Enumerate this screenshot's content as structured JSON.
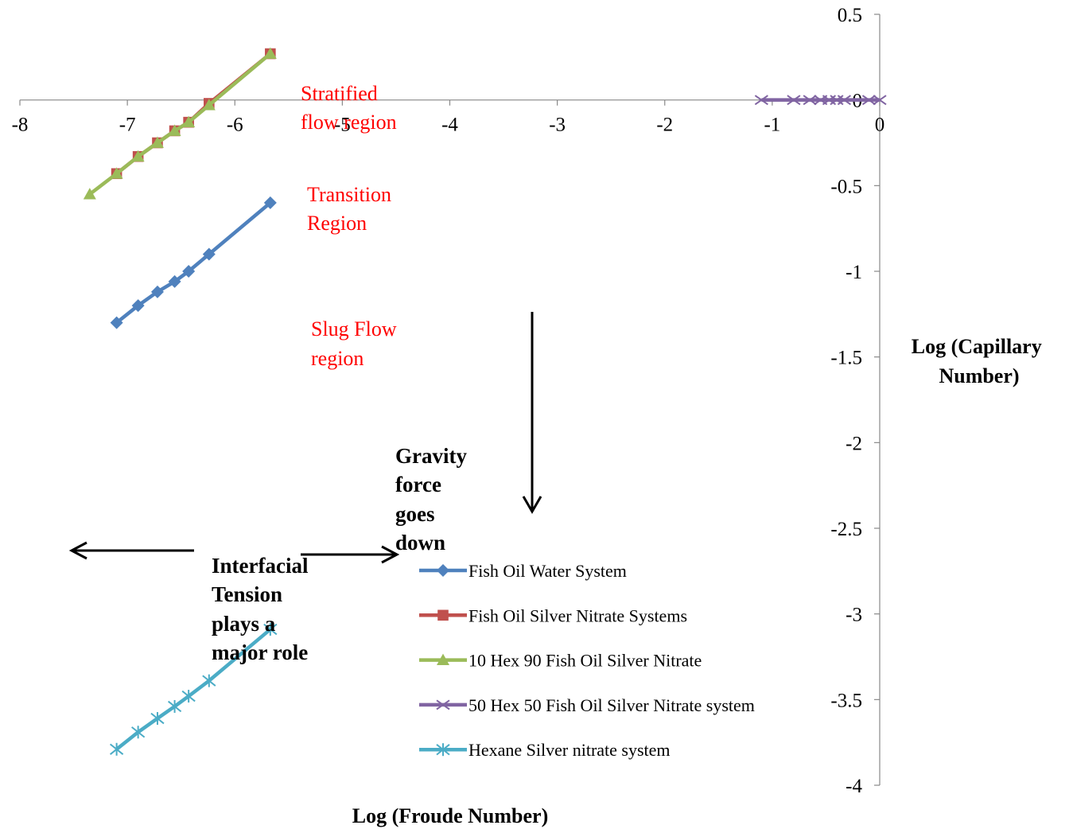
{
  "chart_data": {
    "type": "line",
    "xlabel": "Log (Froude Number)",
    "ylabel_lines": [
      "Log (Capillary",
      "Number)"
    ],
    "xlim": [
      -8,
      0
    ],
    "ylim": [
      -4,
      0.5
    ],
    "x_ticks": [
      -8,
      -7,
      -6,
      -5,
      -4,
      -3,
      -2,
      -1,
      0
    ],
    "y_ticks": [
      0.5,
      0,
      -0.5,
      -1,
      -1.5,
      -2,
      -2.5,
      -3,
      -3.5,
      -4
    ],
    "x_tick_labels": [
      "-8",
      "-7",
      "-6",
      "-5",
      "-4",
      "-3",
      "-2",
      "-1",
      "0"
    ],
    "y_tick_labels": [
      "0.5",
      "0",
      "-0.5",
      "-1",
      "-1.5",
      "-2",
      "-2.5",
      "-3",
      "-3.5",
      "-4"
    ],
    "grid": false,
    "legend_position": "bottom-right",
    "series": [
      {
        "name": "Fish Oil Water System",
        "color": "#4f81bd",
        "marker": "diamond",
        "x": [
          -7.1,
          -6.9,
          -6.72,
          -6.56,
          -6.43,
          -6.24,
          -5.67
        ],
        "y": [
          -1.3,
          -1.2,
          -1.12,
          -1.06,
          -1.0,
          -0.9,
          -0.6
        ]
      },
      {
        "name": "Fish Oil Silver Nitrate Systems",
        "color": "#c0504d",
        "marker": "square",
        "x": [
          -7.1,
          -6.9,
          -6.72,
          -6.56,
          -6.43,
          -6.24,
          -5.67
        ],
        "y": [
          -0.43,
          -0.33,
          -0.25,
          -0.18,
          -0.13,
          -0.02,
          0.27
        ]
      },
      {
        "name": "10 Hex 90 Fish Oil Silver Nitrate",
        "color": "#9bbb59",
        "marker": "triangle",
        "x": [
          -7.35,
          -7.1,
          -6.9,
          -6.72,
          -6.56,
          -6.43,
          -6.24,
          -5.67
        ],
        "y": [
          -0.55,
          -0.43,
          -0.33,
          -0.25,
          -0.18,
          -0.13,
          -0.03,
          0.27
        ]
      },
      {
        "name": "50 Hex 50 Fish Oil Silver Nitrate system",
        "color": "#8064a2",
        "marker": "x",
        "x": [
          -1.1,
          -0.8,
          -0.65,
          -0.55,
          -0.47,
          -0.4,
          -0.33,
          -0.1,
          0
        ],
        "y": [
          0,
          0,
          0,
          0,
          0,
          0,
          0,
          0,
          0
        ]
      },
      {
        "name": "Hexane Silver nitrate system",
        "color": "#4bacc6",
        "marker": "star",
        "x": [
          -7.1,
          -6.9,
          -6.72,
          -6.56,
          -6.43,
          -6.24,
          -5.67
        ],
        "y": [
          -3.79,
          -3.69,
          -3.61,
          -3.54,
          -3.48,
          -3.39,
          -3.09
        ]
      }
    ],
    "annotations": {
      "stratified": [
        "Stratified",
        "flow region"
      ],
      "transition": [
        "Transition",
        "Region"
      ],
      "slug": [
        "Slug Flow",
        "region"
      ],
      "gravity": [
        "Gravity",
        "force",
        "goes",
        "down"
      ],
      "interfacial": [
        "Interfacial",
        "Tension",
        "plays a",
        "major role"
      ]
    }
  }
}
